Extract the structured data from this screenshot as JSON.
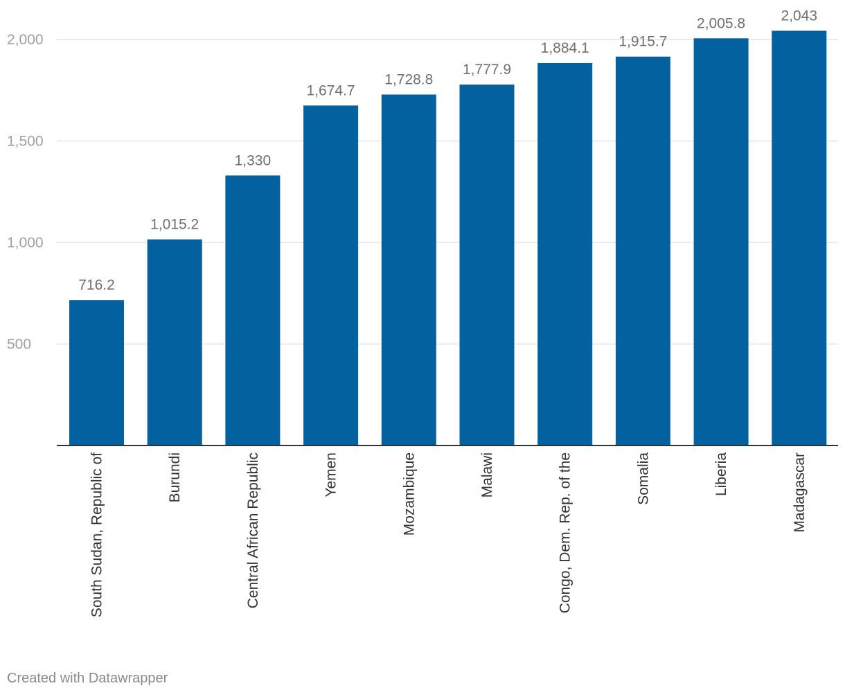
{
  "chart_data": {
    "type": "bar",
    "categories": [
      "South Sudan, Republic of",
      "Burundi",
      "Central African Republic",
      "Yemen",
      "Mozambique",
      "Malawi",
      "Congo, Dem. Rep. of the",
      "Somalia",
      "Liberia",
      "Madagascar"
    ],
    "values": [
      716.2,
      1015.2,
      1330,
      1674.7,
      1728.8,
      1777.9,
      1884.1,
      1915.7,
      2005.8,
      2043
    ],
    "value_labels": [
      "716.2",
      "1,015.2",
      "1,330",
      "1,674.7",
      "1,728.8",
      "1,777.9",
      "1,884.1",
      "1,915.7",
      "2,005.8",
      "2,043"
    ],
    "y_ticks": [
      500,
      1000,
      1500,
      2000
    ],
    "y_tick_labels": [
      "500",
      "1,000",
      "1,500",
      "2,000"
    ],
    "ylim": [
      0,
      2000
    ],
    "grid": true,
    "bar_color": "#0361a0",
    "title": "",
    "xlabel": "",
    "ylabel": ""
  },
  "footer": {
    "credit": "Created with Datawrapper"
  }
}
